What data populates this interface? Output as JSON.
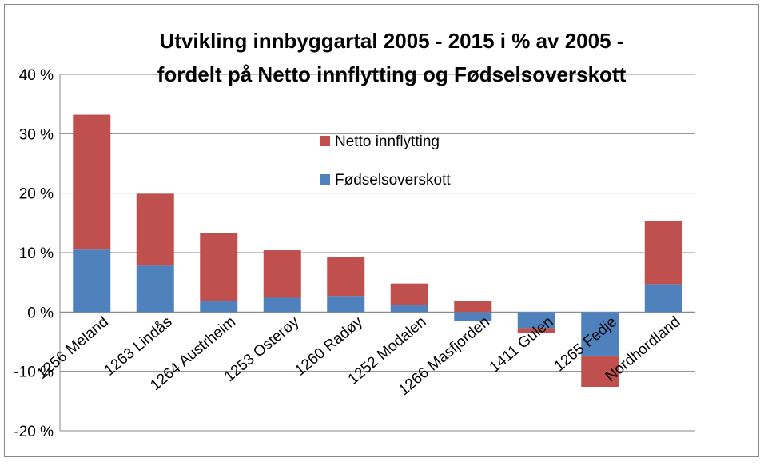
{
  "chart_data": {
    "type": "stacked_bar",
    "title": [
      "Utvikling innbyggartal 2005 - 2015 i % av 2005 -",
      "fordelt på Netto innflytting og Fødselsoverskott"
    ],
    "categories": [
      "1256 Meland",
      "1263 Lindås",
      "1264 Austrheim",
      "1253 Osterøy",
      "1260 Radøy",
      "1252 Modalen",
      "1266 Masfjorden",
      "1411 Gulen",
      "1265 Fedje",
      "Nordhordland"
    ],
    "series": [
      {
        "name": "Fødselsoverskott",
        "color": "#4f81bd",
        "values": [
          10.5,
          7.8,
          1.9,
          2.4,
          2.7,
          1.2,
          -1.5,
          -2.7,
          -7.5,
          4.7
        ]
      },
      {
        "name": "Netto innflytting",
        "color": "#c0504d",
        "values": [
          22.7,
          12.1,
          11.4,
          8.0,
          6.5,
          3.6,
          1.9,
          -0.8,
          -5.1,
          10.6
        ]
      }
    ],
    "ylim": [
      -20,
      40
    ],
    "yticks": [
      {
        "value": -20,
        "label": "-20 %"
      },
      {
        "value": -10,
        "label": "-10 %"
      },
      {
        "value": 0,
        "label": "0 %"
      },
      {
        "value": 10,
        "label": "10 %"
      },
      {
        "value": 20,
        "label": "20 %"
      },
      {
        "value": 30,
        "label": "30 %"
      },
      {
        "value": 40,
        "label": "40 %"
      }
    ],
    "grid": true
  }
}
